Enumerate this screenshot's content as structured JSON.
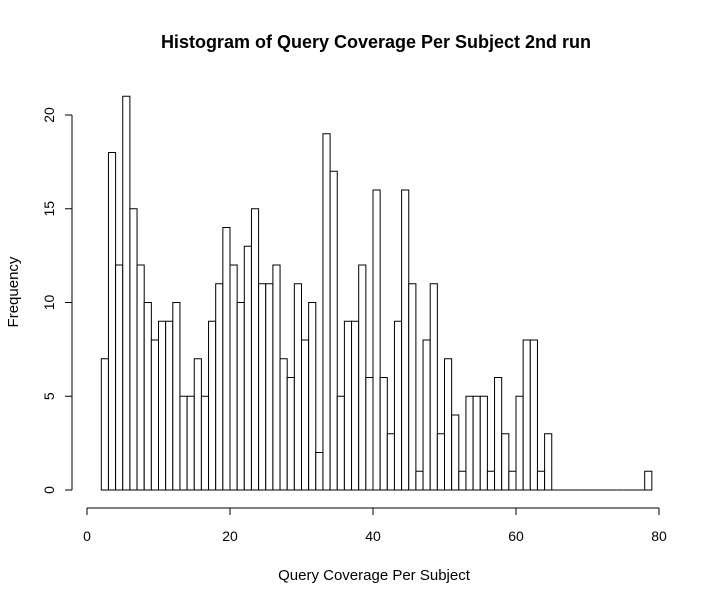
{
  "chart_data": {
    "type": "bar",
    "subtype": "histogram",
    "title": "Histogram of Query Coverage Per Subject 2nd run",
    "xlabel": "Query Coverage Per Subject",
    "ylabel": "Frequency",
    "xlim": [
      0,
      80
    ],
    "ylim": [
      0,
      21
    ],
    "x_ticks": [
      0,
      20,
      40,
      60,
      80
    ],
    "y_ticks": [
      0,
      5,
      10,
      15,
      20
    ],
    "bin_start": 2,
    "bin_width": 1,
    "frequencies": [
      7,
      18,
      12,
      21,
      15,
      12,
      10,
      8,
      9,
      9,
      10,
      5,
      5,
      7,
      5,
      9,
      11,
      14,
      12,
      10,
      13,
      15,
      11,
      11,
      12,
      7,
      6,
      11,
      8,
      10,
      2,
      19,
      17,
      5,
      9,
      9,
      12,
      6,
      16,
      6,
      3,
      9,
      16,
      11,
      1,
      8,
      11,
      3,
      7,
      4,
      1,
      5,
      5,
      5,
      1,
      6,
      3,
      1,
      5,
      8,
      8,
      1,
      3,
      0,
      0,
      0,
      0,
      0,
      0,
      0,
      0,
      0,
      0,
      0,
      0,
      0,
      1
    ],
    "grid": false,
    "legend": "none",
    "bar_fill": "#ffffff",
    "bar_stroke": "#000000"
  }
}
